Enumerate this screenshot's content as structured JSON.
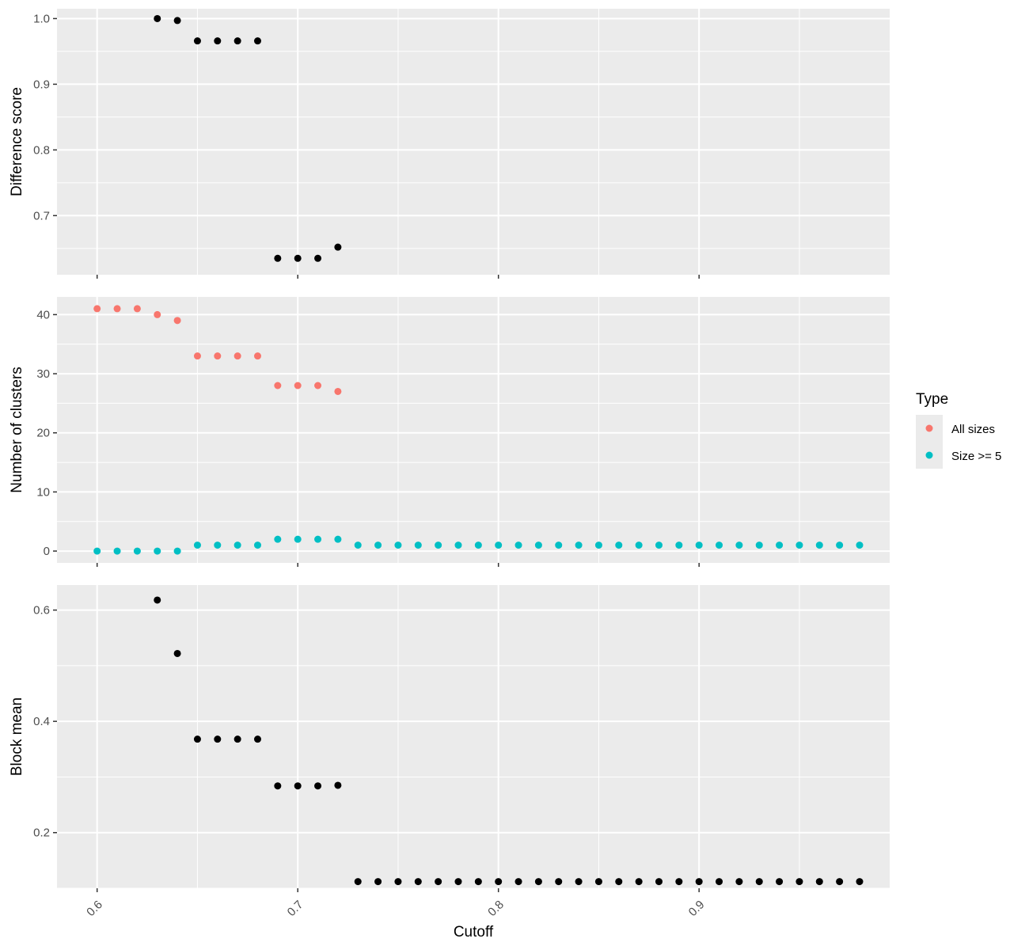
{
  "chart_data": [
    {
      "type": "scatter",
      "panel": "top",
      "ylabel": "Difference score",
      "xlim": [
        0.58,
        0.995
      ],
      "ylim": [
        0.61,
        1.015
      ],
      "x_ticks": [
        0.6,
        0.7,
        0.8,
        0.9
      ],
      "y_ticks": [
        "0.7",
        "0.8",
        "0.9",
        "1.0"
      ],
      "grid": true,
      "series": [
        {
          "color": "#000000",
          "points": [
            [
              0.63,
              1.0
            ],
            [
              0.64,
              0.997
            ],
            [
              0.65,
              0.966
            ],
            [
              0.66,
              0.966
            ],
            [
              0.67,
              0.966
            ],
            [
              0.68,
              0.966
            ],
            [
              0.69,
              0.635
            ],
            [
              0.7,
              0.635
            ],
            [
              0.71,
              0.635
            ],
            [
              0.72,
              0.652
            ]
          ]
        }
      ]
    },
    {
      "type": "scatter",
      "panel": "middle",
      "ylabel": "Number of clusters",
      "xlim": [
        0.58,
        0.995
      ],
      "ylim": [
        -2,
        43
      ],
      "x_ticks": [
        0.6,
        0.7,
        0.8,
        0.9
      ],
      "y_ticks": [
        "0",
        "10",
        "20",
        "30",
        "40"
      ],
      "grid": true,
      "legend": {
        "title": "Type",
        "position": "right",
        "entries": [
          {
            "label": "All sizes",
            "color": "#F8766D"
          },
          {
            "label": "Size >= 5",
            "color": "#00BFC4"
          }
        ]
      },
      "series": [
        {
          "name": "All sizes",
          "color": "#F8766D",
          "points": [
            [
              0.6,
              41
            ],
            [
              0.61,
              41
            ],
            [
              0.62,
              41
            ],
            [
              0.63,
              40
            ],
            [
              0.64,
              39
            ],
            [
              0.65,
              33
            ],
            [
              0.66,
              33
            ],
            [
              0.67,
              33
            ],
            [
              0.68,
              33
            ],
            [
              0.69,
              28
            ],
            [
              0.7,
              28
            ],
            [
              0.71,
              28
            ],
            [
              0.72,
              27
            ]
          ]
        },
        {
          "name": "Size >= 5",
          "color": "#00BFC4",
          "points": [
            [
              0.6,
              0
            ],
            [
              0.61,
              0
            ],
            [
              0.62,
              0
            ],
            [
              0.63,
              0
            ],
            [
              0.64,
              0
            ],
            [
              0.65,
              1
            ],
            [
              0.66,
              1
            ],
            [
              0.67,
              1
            ],
            [
              0.68,
              1
            ],
            [
              0.69,
              2
            ],
            [
              0.7,
              2
            ],
            [
              0.71,
              2
            ],
            [
              0.72,
              2
            ],
            [
              0.73,
              1
            ],
            [
              0.74,
              1
            ],
            [
              0.75,
              1
            ],
            [
              0.76,
              1
            ],
            [
              0.77,
              1
            ],
            [
              0.78,
              1
            ],
            [
              0.79,
              1
            ],
            [
              0.8,
              1
            ],
            [
              0.81,
              1
            ],
            [
              0.82,
              1
            ],
            [
              0.83,
              1
            ],
            [
              0.84,
              1
            ],
            [
              0.85,
              1
            ],
            [
              0.86,
              1
            ],
            [
              0.87,
              1
            ],
            [
              0.88,
              1
            ],
            [
              0.89,
              1
            ],
            [
              0.9,
              1
            ],
            [
              0.91,
              1
            ],
            [
              0.92,
              1
            ],
            [
              0.93,
              1
            ],
            [
              0.94,
              1
            ],
            [
              0.95,
              1
            ],
            [
              0.96,
              1
            ],
            [
              0.97,
              1
            ],
            [
              0.98,
              1
            ]
          ]
        }
      ]
    },
    {
      "type": "scatter",
      "panel": "bottom",
      "ylabel": "Block mean",
      "xlabel": "Cutoff",
      "xlim": [
        0.58,
        0.995
      ],
      "ylim": [
        0.1,
        0.645
      ],
      "x_ticks": [
        0.6,
        0.7,
        0.8,
        0.9
      ],
      "x_tick_labels": [
        "0.6",
        "0.7",
        "0.8",
        "0.9"
      ],
      "y_ticks": [
        "0.2",
        "0.4",
        "0.6"
      ],
      "grid": true,
      "series": [
        {
          "color": "#000000",
          "points": [
            [
              0.63,
              0.618
            ],
            [
              0.64,
              0.522
            ],
            [
              0.65,
              0.368
            ],
            [
              0.66,
              0.368
            ],
            [
              0.67,
              0.368
            ],
            [
              0.68,
              0.368
            ],
            [
              0.69,
              0.284
            ],
            [
              0.7,
              0.284
            ],
            [
              0.71,
              0.284
            ],
            [
              0.72,
              0.285
            ],
            [
              0.73,
              0.112
            ],
            [
              0.74,
              0.112
            ],
            [
              0.75,
              0.112
            ],
            [
              0.76,
              0.112
            ],
            [
              0.77,
              0.112
            ],
            [
              0.78,
              0.112
            ],
            [
              0.79,
              0.112
            ],
            [
              0.8,
              0.112
            ],
            [
              0.81,
              0.112
            ],
            [
              0.82,
              0.112
            ],
            [
              0.83,
              0.112
            ],
            [
              0.84,
              0.112
            ],
            [
              0.85,
              0.112
            ],
            [
              0.86,
              0.112
            ],
            [
              0.87,
              0.112
            ],
            [
              0.88,
              0.112
            ],
            [
              0.89,
              0.112
            ],
            [
              0.9,
              0.112
            ],
            [
              0.91,
              0.112
            ],
            [
              0.92,
              0.112
            ],
            [
              0.93,
              0.112
            ],
            [
              0.94,
              0.112
            ],
            [
              0.95,
              0.112
            ],
            [
              0.96,
              0.112
            ],
            [
              0.97,
              0.112
            ],
            [
              0.98,
              0.112
            ]
          ]
        }
      ]
    }
  ]
}
